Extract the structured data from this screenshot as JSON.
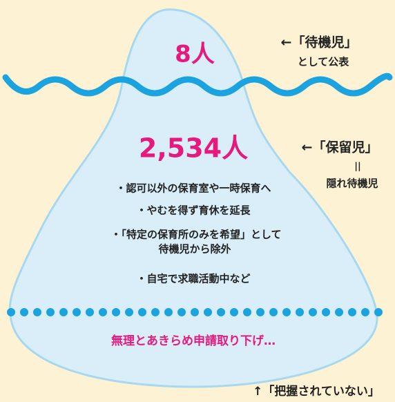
{
  "top": {
    "count": "8人",
    "label": "←「待機児」",
    "note": "として公表"
  },
  "middle": {
    "count": "2,534人",
    "label": "←「保留児」",
    "equals": "||",
    "note": "隠れ待機児",
    "items": [
      "・認可以外の保育室や一時保育へ",
      "・やむを得ず育休を延長",
      "・「特定の保育所のみを希望」として",
      "待機児から除外",
      "・自宅で求職活動中など"
    ]
  },
  "bottom": {
    "text": "無理とあきらめ申請取り下げ…",
    "label": "↑「把握されていない」"
  }
}
